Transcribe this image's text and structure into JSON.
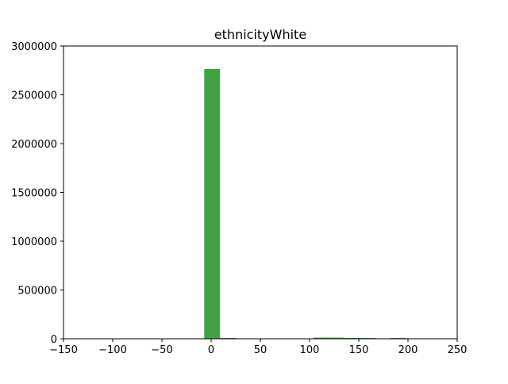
{
  "chart_data": {
    "type": "bar",
    "title": "ethnicityWhite",
    "xlabel": "",
    "ylabel": "",
    "xlim": [
      -150,
      250
    ],
    "ylim": [
      0,
      3000000
    ],
    "xticks": [
      -150,
      -100,
      -50,
      0,
      50,
      100,
      150,
      200,
      250
    ],
    "xtick_labels": [
      "−150",
      "−100",
      "−50",
      "0",
      "50",
      "100",
      "150",
      "200",
      "250"
    ],
    "yticks": [
      0,
      500000,
      1000000,
      1500000,
      2000000,
      2500000,
      3000000
    ],
    "ytick_labels": [
      "0",
      "500000",
      "1000000",
      "1500000",
      "2000000",
      "2500000",
      "3000000"
    ],
    "bar_color": "#43a143",
    "grid": false,
    "bins": [
      {
        "x0": -7,
        "x1": 9,
        "value": 2765000
      },
      {
        "x0": 9,
        "x1": 25,
        "value": 5000
      },
      {
        "x0": 104,
        "x1": 120,
        "value": 12000
      },
      {
        "x0": 120,
        "x1": 135,
        "value": 12000
      },
      {
        "x0": 135,
        "x1": 151,
        "value": 7000
      },
      {
        "x0": 151,
        "x1": 167,
        "value": 7000
      },
      {
        "x0": 182,
        "x1": 198,
        "value": 6000
      }
    ]
  }
}
